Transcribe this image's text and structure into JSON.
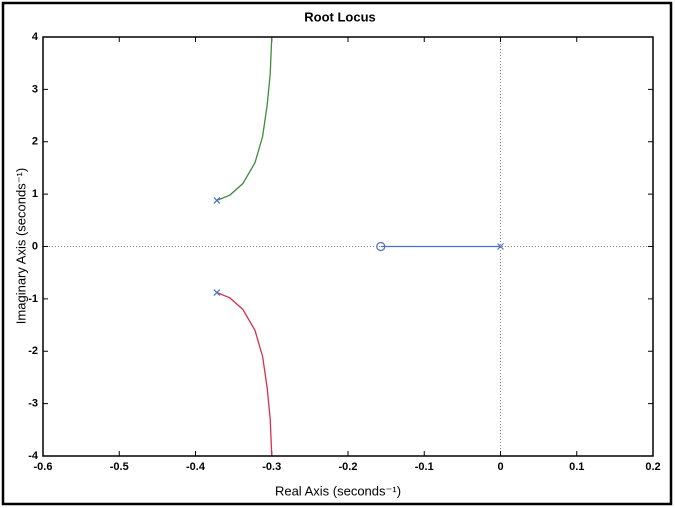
{
  "chart_data": {
    "type": "line",
    "title": "Root Locus",
    "xlabel": "Real Axis (seconds⁻¹)",
    "ylabel": "Imaginary Axis (seconds⁻¹)",
    "xlim": [
      -0.6,
      0.2
    ],
    "xticks": [
      -0.6,
      -0.5,
      -0.4,
      -0.3,
      -0.2,
      -0.1,
      0,
      0.1,
      0.2
    ],
    "ylim": [
      -4,
      4
    ],
    "yticks": [
      -4,
      -3,
      -2,
      -1,
      0,
      1,
      2,
      3,
      4
    ],
    "series": [
      {
        "color": "#3d8c3d",
        "x": [
          -0.372,
          -0.355,
          -0.338,
          -0.322,
          -0.312,
          -0.306,
          -0.302,
          -0.3
        ],
        "values": [
          0.88,
          0.98,
          1.2,
          1.6,
          2.1,
          2.7,
          3.3,
          4
        ]
      },
      {
        "color": "#d6304a",
        "x": [
          -0.372,
          -0.355,
          -0.338,
          -0.322,
          -0.312,
          -0.306,
          -0.302,
          -0.3
        ],
        "values": [
          -0.88,
          -0.98,
          -1.2,
          -1.6,
          -2.1,
          -2.7,
          -3.3,
          -4
        ]
      },
      {
        "color": "#4a6fc4",
        "x": [
          -0.157,
          0
        ],
        "values": [
          0,
          0
        ]
      },
      {
        "color": "#4a6fc4",
        "marker": "x",
        "x": [
          -0.372,
          -0.372,
          0
        ],
        "values": [
          0.88,
          -0.88,
          0
        ]
      },
      {
        "color": "#4a6fc4",
        "marker": "o",
        "x": [
          -0.157
        ],
        "values": [
          0
        ]
      }
    ]
  }
}
